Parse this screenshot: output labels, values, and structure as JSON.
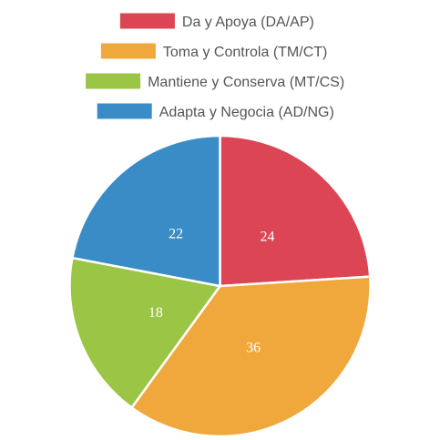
{
  "chart_data": {
    "type": "pie",
    "categories": [
      "Da y Apoya (DA/AP)",
      "Toma y Controla (TM/CT)",
      "Mantiene y Conserva (MT/CS)",
      "Adapta y Negocia (AD/NG)"
    ],
    "values": [
      24,
      36,
      18,
      22
    ],
    "value_labels": [
      "24",
      "36",
      "18",
      "22"
    ],
    "colors": [
      "#dc4553",
      "#f0a83c",
      "#9bc544",
      "#3a8cc6"
    ],
    "legend_position": "top",
    "start_angle": "top, clockwise"
  }
}
